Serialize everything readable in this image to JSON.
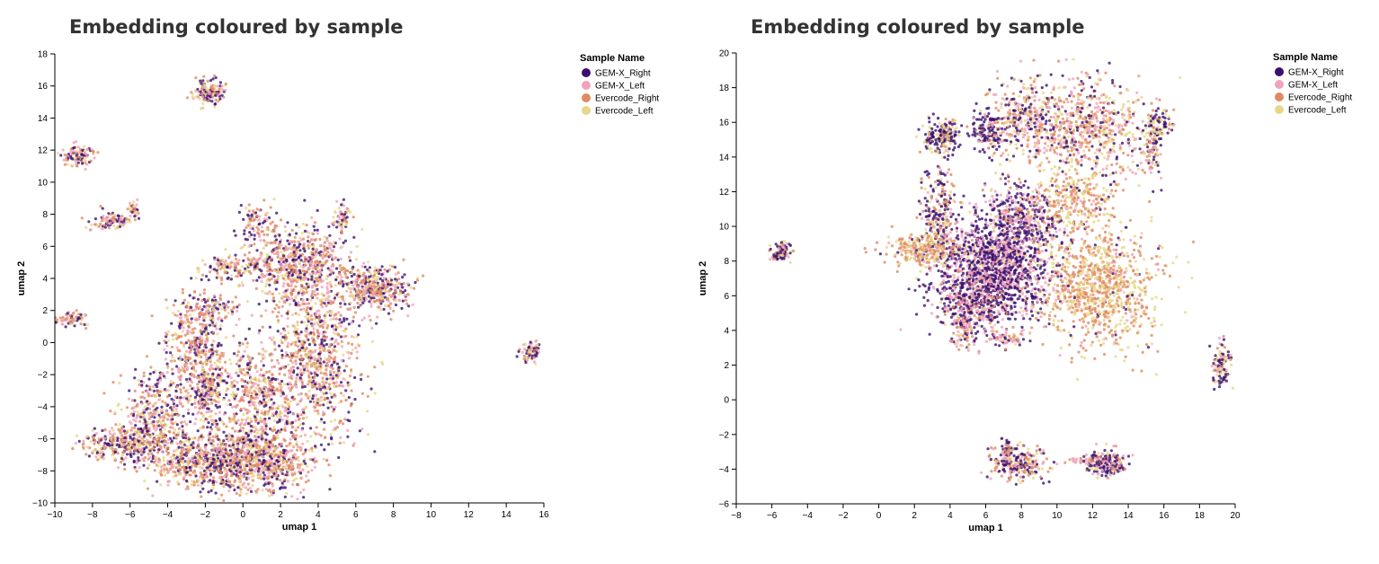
{
  "chart_data": [
    {
      "type": "scatter",
      "title": "Embedding coloured by sample",
      "xlabel": "umap 1",
      "ylabel": "umap 2",
      "xlim": [
        -10,
        16
      ],
      "ylim": [
        -10,
        18
      ],
      "xticks": [
        -10,
        -8,
        -6,
        -4,
        -2,
        0,
        2,
        4,
        6,
        8,
        10,
        12,
        14,
        16
      ],
      "yticks": [
        -10,
        -8,
        -6,
        -4,
        -2,
        0,
        2,
        4,
        6,
        8,
        10,
        12,
        14,
        16,
        18
      ],
      "grid": false,
      "legend": {
        "title": "Sample Name",
        "placement": "top-right"
      },
      "series": [
        {
          "name": "GEM-X_Right",
          "color": "#3b0f70"
        },
        {
          "name": "GEM-X_Left",
          "color": "#f1a2bd"
        },
        {
          "name": "Evercode_Right",
          "color": "#e08a64"
        },
        {
          "name": "Evercode_Left",
          "color": "#e8d78a"
        }
      ],
      "clusters": [
        {
          "cx": -1.8,
          "cy": 15.6,
          "sx": 0.45,
          "sy": 0.35,
          "n": 150,
          "w": [
            0.3,
            0.2,
            0.3,
            0.2
          ]
        },
        {
          "cx": -8.8,
          "cy": 11.7,
          "sx": 0.45,
          "sy": 0.3,
          "n": 110,
          "w": [
            0.3,
            0.2,
            0.3,
            0.2
          ]
        },
        {
          "cx": -7.0,
          "cy": 7.6,
          "sx": 0.6,
          "sy": 0.3,
          "n": 90,
          "w": [
            0.3,
            0.2,
            0.3,
            0.2
          ]
        },
        {
          "cx": -5.8,
          "cy": 8.3,
          "sx": 0.15,
          "sy": 0.3,
          "n": 30,
          "w": [
            0.3,
            0.2,
            0.3,
            0.2
          ]
        },
        {
          "cx": -9.2,
          "cy": 1.4,
          "sx": 0.5,
          "sy": 0.2,
          "n": 70,
          "w": [
            0.3,
            0.2,
            0.3,
            0.2
          ]
        },
        {
          "cx": 15.3,
          "cy": -0.6,
          "sx": 0.25,
          "sy": 0.3,
          "n": 70,
          "w": [
            0.3,
            0.3,
            0.2,
            0.2
          ]
        },
        {
          "cx": 2.8,
          "cy": 5.0,
          "sx": 1.4,
          "sy": 1.3,
          "n": 650,
          "w": [
            0.25,
            0.2,
            0.35,
            0.2
          ]
        },
        {
          "cx": 6.9,
          "cy": 3.3,
          "sx": 0.9,
          "sy": 0.7,
          "n": 420,
          "w": [
            0.25,
            0.2,
            0.35,
            0.2
          ]
        },
        {
          "cx": 3.9,
          "cy": -1.0,
          "sx": 1.3,
          "sy": 2.6,
          "n": 850,
          "w": [
            0.25,
            0.2,
            0.35,
            0.2
          ]
        },
        {
          "cx": 0.6,
          "cy": -3.5,
          "sx": 1.0,
          "sy": 1.6,
          "n": 450,
          "w": [
            0.25,
            0.2,
            0.35,
            0.2
          ]
        },
        {
          "cx": -2.6,
          "cy": 0.0,
          "sx": 0.8,
          "sy": 1.5,
          "n": 350,
          "w": [
            0.25,
            0.2,
            0.35,
            0.2
          ]
        },
        {
          "cx": -1.8,
          "cy": -3.0,
          "sx": 0.4,
          "sy": 1.2,
          "n": 220,
          "w": [
            0.3,
            0.2,
            0.3,
            0.2
          ]
        },
        {
          "cx": -4.5,
          "cy": -4.5,
          "sx": 1.0,
          "sy": 1.4,
          "n": 420,
          "w": [
            0.3,
            0.2,
            0.3,
            0.2
          ]
        },
        {
          "cx": -6.5,
          "cy": -6.3,
          "sx": 1.1,
          "sy": 0.5,
          "n": 280,
          "w": [
            0.25,
            0.2,
            0.35,
            0.2
          ]
        },
        {
          "cx": -1.5,
          "cy": -7.4,
          "sx": 1.9,
          "sy": 0.9,
          "n": 800,
          "w": [
            0.25,
            0.2,
            0.35,
            0.2
          ]
        },
        {
          "cx": 1.3,
          "cy": -7.2,
          "sx": 1.3,
          "sy": 1.1,
          "n": 480,
          "w": [
            0.25,
            0.2,
            0.35,
            0.2
          ]
        },
        {
          "cx": 0.7,
          "cy": 7.5,
          "sx": 0.35,
          "sy": 0.6,
          "n": 70,
          "w": [
            0.3,
            0.2,
            0.3,
            0.2
          ]
        },
        {
          "cx": 5.3,
          "cy": 7.8,
          "sx": 0.2,
          "sy": 0.5,
          "n": 60,
          "w": [
            0.3,
            0.2,
            0.3,
            0.2
          ]
        },
        {
          "cx": -0.6,
          "cy": 4.7,
          "sx": 0.8,
          "sy": 0.4,
          "n": 110,
          "w": [
            0.25,
            0.2,
            0.35,
            0.2
          ]
        },
        {
          "cx": -1.6,
          "cy": 2.1,
          "sx": 0.7,
          "sy": 0.4,
          "n": 100,
          "w": [
            0.25,
            0.2,
            0.35,
            0.2
          ]
        }
      ]
    },
    {
      "type": "scatter",
      "title": "Embedding coloured by sample",
      "xlabel": "umap 1",
      "ylabel": "umap 2",
      "xlim": [
        -8,
        20
      ],
      "ylim": [
        -6,
        20
      ],
      "xticks": [
        -8,
        -6,
        -4,
        -2,
        0,
        2,
        4,
        6,
        8,
        10,
        12,
        14,
        16,
        18,
        20
      ],
      "yticks": [
        -6,
        -4,
        -2,
        0,
        2,
        4,
        6,
        8,
        10,
        12,
        14,
        16,
        18,
        20
      ],
      "grid": false,
      "legend": {
        "title": "Sample Name",
        "placement": "top-right"
      },
      "series": [
        {
          "name": "GEM-X_Right",
          "color": "#3b0f70"
        },
        {
          "name": "GEM-X_Left",
          "color": "#f1a2bd"
        },
        {
          "name": "Evercode_Right",
          "color": "#e08a64"
        },
        {
          "name": "Evercode_Left",
          "color": "#e8d78a"
        }
      ],
      "clusters": [
        {
          "cx": 6.4,
          "cy": 7.6,
          "sx": 1.7,
          "sy": 1.6,
          "n": 1500,
          "w": [
            0.55,
            0.35,
            0.05,
            0.05
          ]
        },
        {
          "cx": 8.0,
          "cy": 10.5,
          "sx": 1.1,
          "sy": 1.0,
          "n": 350,
          "w": [
            0.55,
            0.3,
            0.1,
            0.05
          ]
        },
        {
          "cx": 12.5,
          "cy": 6.5,
          "sx": 1.6,
          "sy": 1.7,
          "n": 950,
          "w": [
            0.03,
            0.07,
            0.5,
            0.4
          ]
        },
        {
          "cx": 10.8,
          "cy": 11.5,
          "sx": 1.3,
          "sy": 1.2,
          "n": 350,
          "w": [
            0.05,
            0.1,
            0.45,
            0.4
          ]
        },
        {
          "cx": 11.5,
          "cy": 15.7,
          "sx": 1.9,
          "sy": 1.3,
          "n": 700,
          "w": [
            0.2,
            0.2,
            0.3,
            0.3
          ]
        },
        {
          "cx": 8.2,
          "cy": 16.2,
          "sx": 1.0,
          "sy": 1.0,
          "n": 280,
          "w": [
            0.3,
            0.2,
            0.25,
            0.25
          ]
        },
        {
          "cx": 3.5,
          "cy": 15.2,
          "sx": 0.55,
          "sy": 0.5,
          "n": 200,
          "w": [
            0.5,
            0.05,
            0.1,
            0.35
          ]
        },
        {
          "cx": 6.1,
          "cy": 15.4,
          "sx": 0.5,
          "sy": 0.6,
          "n": 140,
          "w": [
            0.6,
            0.15,
            0.1,
            0.15
          ]
        },
        {
          "cx": 3.3,
          "cy": 11.0,
          "sx": 0.6,
          "sy": 1.3,
          "n": 220,
          "w": [
            0.4,
            0.1,
            0.3,
            0.2
          ]
        },
        {
          "cx": 2.3,
          "cy": 8.7,
          "sx": 1.0,
          "sy": 0.5,
          "n": 250,
          "w": [
            0.05,
            0.1,
            0.45,
            0.4
          ]
        },
        {
          "cx": 5.3,
          "cy": 5.3,
          "sx": 1.0,
          "sy": 0.8,
          "n": 260,
          "w": [
            0.4,
            0.45,
            0.1,
            0.05
          ]
        },
        {
          "cx": 4.7,
          "cy": 3.8,
          "sx": 0.35,
          "sy": 0.5,
          "n": 60,
          "w": [
            0.3,
            0.2,
            0.3,
            0.2
          ]
        },
        {
          "cx": 7.3,
          "cy": 3.6,
          "sx": 0.6,
          "sy": 0.3,
          "n": 60,
          "w": [
            0.2,
            0.4,
            0.2,
            0.2
          ]
        },
        {
          "cx": 15.3,
          "cy": 14.5,
          "sx": 0.3,
          "sy": 1.0,
          "n": 100,
          "w": [
            0.2,
            0.2,
            0.3,
            0.3
          ]
        },
        {
          "cx": 15.8,
          "cy": 15.9,
          "sx": 0.4,
          "sy": 0.4,
          "n": 70,
          "w": [
            0.45,
            0.1,
            0.1,
            0.35
          ]
        },
        {
          "cx": -5.5,
          "cy": 8.6,
          "sx": 0.3,
          "sy": 0.3,
          "n": 70,
          "w": [
            0.5,
            0.1,
            0.2,
            0.2
          ]
        },
        {
          "cx": 19.2,
          "cy": 2.0,
          "sx": 0.25,
          "sy": 0.7,
          "n": 110,
          "w": [
            0.45,
            0.1,
            0.2,
            0.25
          ]
        },
        {
          "cx": 7.9,
          "cy": -3.7,
          "sx": 0.8,
          "sy": 0.5,
          "n": 230,
          "w": [
            0.3,
            0.2,
            0.3,
            0.2
          ]
        },
        {
          "cx": 7.2,
          "cy": -2.8,
          "sx": 0.15,
          "sy": 0.4,
          "n": 40,
          "w": [
            0.5,
            0.2,
            0.2,
            0.1
          ]
        },
        {
          "cx": 12.8,
          "cy": -3.6,
          "sx": 0.6,
          "sy": 0.4,
          "n": 190,
          "w": [
            0.45,
            0.2,
            0.2,
            0.15
          ]
        },
        {
          "cx": 11.3,
          "cy": -3.5,
          "sx": 0.4,
          "sy": 0.1,
          "n": 25,
          "w": [
            0.1,
            0.6,
            0.2,
            0.1
          ]
        }
      ]
    }
  ]
}
